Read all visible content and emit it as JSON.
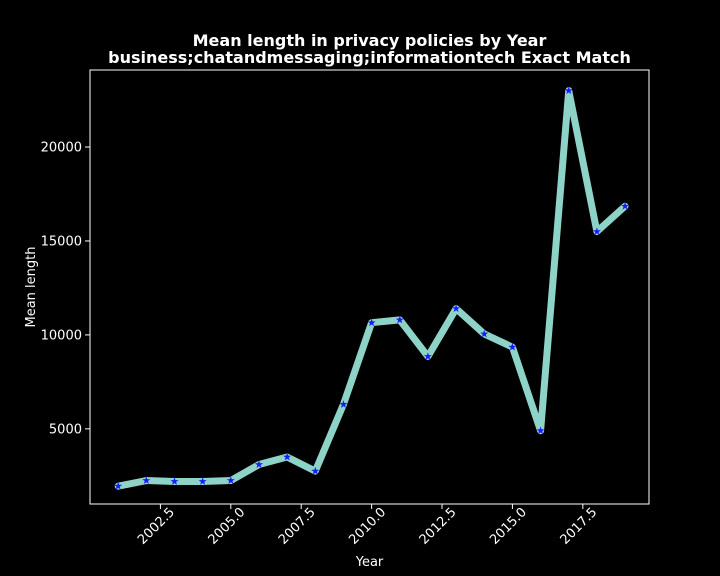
{
  "chart_data": {
    "type": "line",
    "title": [
      "Mean length in privacy policies by Year",
      "business;chatandmessaging;informationtech Exact Match"
    ],
    "xlabel": "Year",
    "ylabel": "Mean length",
    "xlim": [
      2000.0,
      2019.85
    ],
    "ylim": [
      1000,
      24100
    ],
    "x_ticks": [
      2002.5,
      2005.0,
      2007.5,
      2010.0,
      2012.5,
      2015.0,
      2017.5
    ],
    "x_tick_labels": [
      "2002.5",
      "2005.0",
      "2007.5",
      "2010.0",
      "2012.5",
      "2015.0",
      "2017.5"
    ],
    "y_ticks": [
      5000,
      10000,
      15000,
      20000
    ],
    "y_tick_labels": [
      "5000",
      "10000",
      "15000",
      "20000"
    ],
    "grid": false,
    "legend": "none",
    "series": [
      {
        "line_color": "#8dd3c7",
        "marker_color": "#1a1aff",
        "marker": "star",
        "x": [
          2001,
          2002,
          2003,
          2004,
          2005,
          2006,
          2007,
          2008,
          2009,
          2010,
          2011,
          2012,
          2013,
          2014,
          2015,
          2016,
          2017,
          2018,
          2019
        ],
        "values": [
          1950,
          2250,
          2200,
          2200,
          2250,
          3100,
          3500,
          2750,
          6300,
          10650,
          10800,
          8850,
          11400,
          10050,
          9350,
          4900,
          23000,
          15500,
          16850
        ]
      }
    ]
  },
  "colors": {
    "background": "#000000",
    "axes": "#ffffff",
    "text": "#ffffff"
  }
}
